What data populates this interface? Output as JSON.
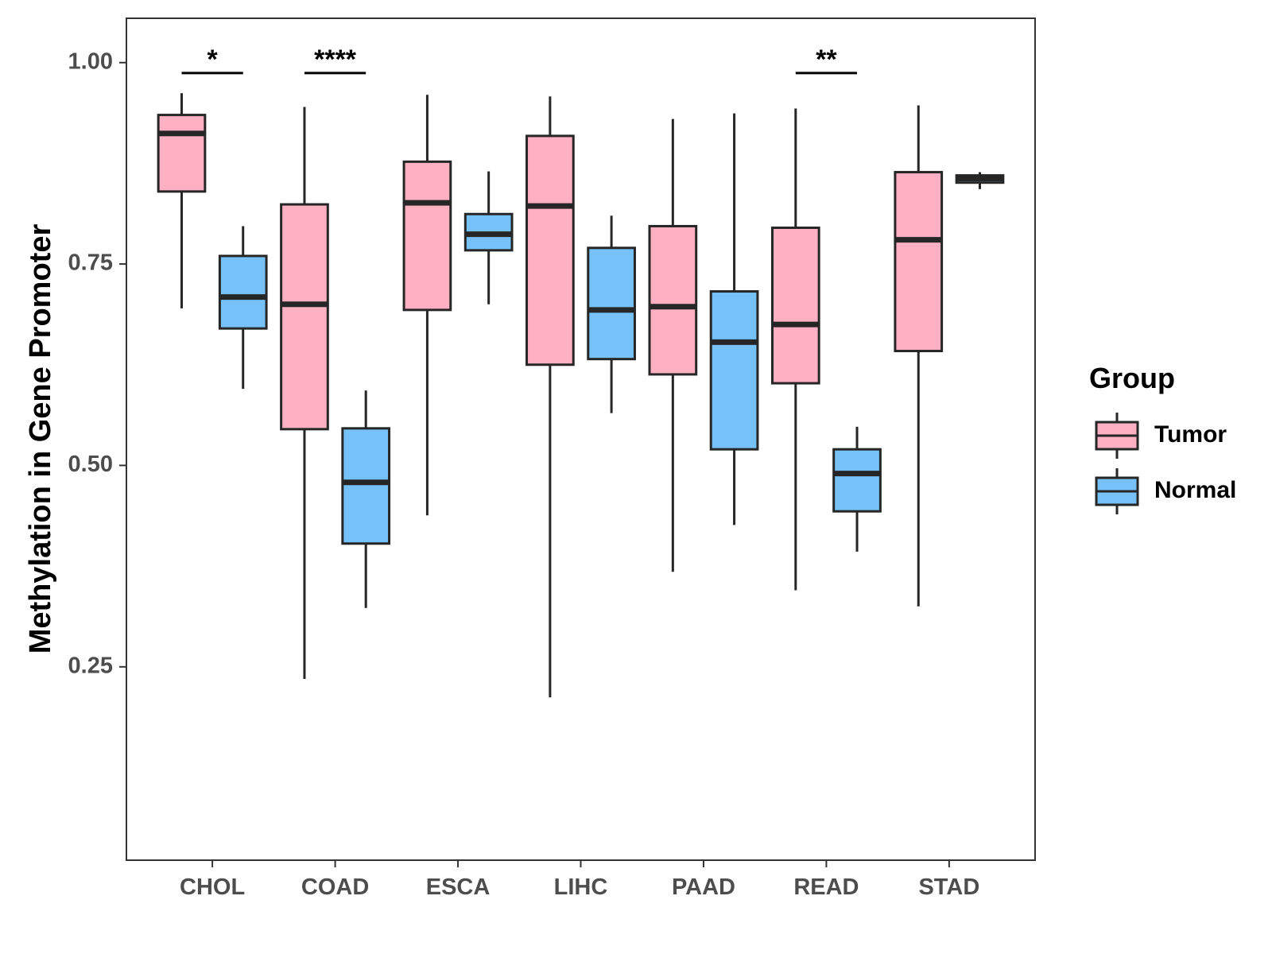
{
  "chart_data": {
    "type": "boxplot",
    "ylabel": "Methylation in Gene Promoter",
    "xlabel": "",
    "ylim": [
      0.01,
      1.055
    ],
    "yticks": [
      0.25,
      0.5,
      0.75,
      1.0
    ],
    "ytick_labels": [
      "0.25",
      "0.50",
      "0.75",
      "1.00"
    ],
    "categories": [
      "CHOL",
      "COAD",
      "ESCA",
      "LIHC",
      "PAAD",
      "READ",
      "STAD"
    ],
    "legend": {
      "title": "Group",
      "position": "right",
      "entries": [
        {
          "name": "Tumor",
          "color": "#ffb1c3"
        },
        {
          "name": "Normal",
          "color": "#76c2f8"
        }
      ]
    },
    "series": [
      {
        "name": "Tumor",
        "color": "#ffb1c3",
        "boxes": [
          {
            "category": "CHOL",
            "lower_whisker": 0.695,
            "q1": 0.84,
            "median": 0.912,
            "q3": 0.935,
            "upper_whisker": 0.962
          },
          {
            "category": "COAD",
            "lower_whisker": 0.235,
            "q1": 0.545,
            "median": 0.7,
            "q3": 0.824,
            "upper_whisker": 0.945
          },
          {
            "category": "ESCA",
            "lower_whisker": 0.438,
            "q1": 0.693,
            "median": 0.826,
            "q3": 0.877,
            "upper_whisker": 0.96
          },
          {
            "category": "LIHC",
            "lower_whisker": 0.212,
            "q1": 0.625,
            "median": 0.822,
            "q3": 0.909,
            "upper_whisker": 0.958
          },
          {
            "category": "PAAD",
            "lower_whisker": 0.368,
            "q1": 0.613,
            "median": 0.697,
            "q3": 0.797,
            "upper_whisker": 0.93
          },
          {
            "category": "READ",
            "lower_whisker": 0.345,
            "q1": 0.602,
            "median": 0.675,
            "q3": 0.795,
            "upper_whisker": 0.943
          },
          {
            "category": "STAD",
            "lower_whisker": 0.325,
            "q1": 0.642,
            "median": 0.78,
            "q3": 0.864,
            "upper_whisker": 0.947
          }
        ]
      },
      {
        "name": "Normal",
        "color": "#76c2f8",
        "boxes": [
          {
            "category": "CHOL",
            "lower_whisker": 0.595,
            "q1": 0.67,
            "median": 0.709,
            "q3": 0.76,
            "upper_whisker": 0.797
          },
          {
            "category": "COAD",
            "lower_whisker": 0.323,
            "q1": 0.403,
            "median": 0.479,
            "q3": 0.546,
            "upper_whisker": 0.593
          },
          {
            "category": "ESCA",
            "lower_whisker": 0.7,
            "q1": 0.767,
            "median": 0.787,
            "q3": 0.812,
            "upper_whisker": 0.865
          },
          {
            "category": "LIHC",
            "lower_whisker": 0.565,
            "q1": 0.632,
            "median": 0.693,
            "q3": 0.77,
            "upper_whisker": 0.81
          },
          {
            "category": "PAAD",
            "lower_whisker": 0.426,
            "q1": 0.52,
            "median": 0.653,
            "q3": 0.716,
            "upper_whisker": 0.937
          },
          {
            "category": "READ",
            "lower_whisker": 0.393,
            "q1": 0.443,
            "median": 0.49,
            "q3": 0.52,
            "upper_whisker": 0.548
          },
          {
            "category": "STAD",
            "lower_whisker": 0.843,
            "q1": 0.851,
            "median": 0.856,
            "q3": 0.86,
            "upper_whisker": 0.864
          }
        ]
      }
    ],
    "annotations": [
      {
        "category": "CHOL",
        "label": "*",
        "y": 0.987
      },
      {
        "category": "COAD",
        "label": "****",
        "y": 0.987
      },
      {
        "category": "READ",
        "label": "**",
        "y": 0.987
      }
    ]
  }
}
